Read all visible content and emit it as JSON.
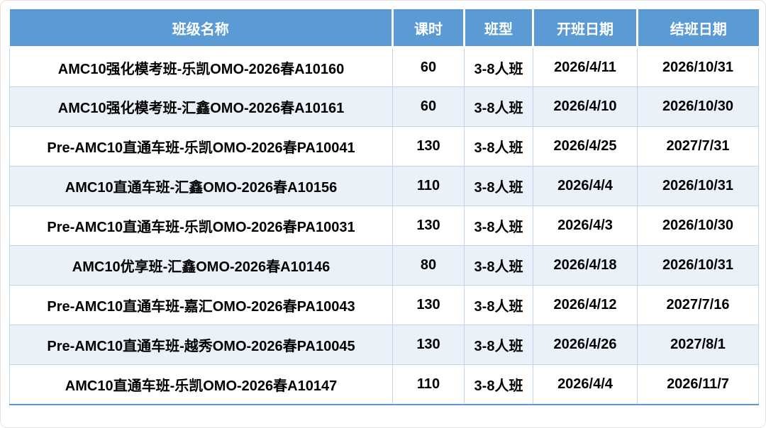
{
  "colors": {
    "header_bg": "#5B9BD5",
    "header_text": "#FFFFFF",
    "alt_row_bg": "#EAF1F9",
    "grid_border": "#BDD7EE",
    "bottom_border": "#5B9BD5",
    "body_text": "#000000"
  },
  "table": {
    "columns": [
      {
        "key": "name",
        "label": "班级名称"
      },
      {
        "key": "hours",
        "label": "课时"
      },
      {
        "key": "type",
        "label": "班型"
      },
      {
        "key": "start",
        "label": "开班日期"
      },
      {
        "key": "end",
        "label": "结班日期"
      }
    ],
    "rows": [
      {
        "name": "AMC10强化模考班-乐凯OMO-2026春A10160",
        "hours": "60",
        "type": "3-8人班",
        "start": "2026/4/11",
        "end": "2026/10/31"
      },
      {
        "name": "AMC10强化模考班-汇鑫OMO-2026春A10161",
        "hours": "60",
        "type": "3-8人班",
        "start": "2026/4/10",
        "end": "2026/10/30"
      },
      {
        "name": "Pre-AMC10直通车班-乐凯OMO-2026春PA10041",
        "hours": "130",
        "type": "3-8人班",
        "start": "2026/4/25",
        "end": "2027/7/31"
      },
      {
        "name": "AMC10直通车班-汇鑫OMO-2026春A10156",
        "hours": "110",
        "type": "3-8人班",
        "start": "2026/4/4",
        "end": "2026/10/31"
      },
      {
        "name": "Pre-AMC10直通车班-乐凯OMO-2026春PA10031",
        "hours": "130",
        "type": "3-8人班",
        "start": "2026/4/3",
        "end": "2026/10/30"
      },
      {
        "name": "AMC10优享班-汇鑫OMO-2026春A10146",
        "hours": "80",
        "type": "3-8人班",
        "start": "2026/4/18",
        "end": "2026/10/31"
      },
      {
        "name": "Pre-AMC10直通车班-嘉汇OMO-2026春PA10043",
        "hours": "130",
        "type": "3-8人班",
        "start": "2026/4/12",
        "end": "2027/7/16"
      },
      {
        "name": "Pre-AMC10直通车班-越秀OMO-2026春PA10045",
        "hours": "130",
        "type": "3-8人班",
        "start": "2026/4/26",
        "end": "2027/8/1"
      },
      {
        "name": "AMC10直通车班-乐凯OMO-2026春A10147",
        "hours": "110",
        "type": "3-8人班",
        "start": "2026/4/4",
        "end": "2026/11/7"
      }
    ]
  },
  "chart_data": {
    "type": "table",
    "headers": [
      "班级名称",
      "课时",
      "班型",
      "开班日期",
      "结班日期"
    ],
    "rows": [
      [
        "AMC10强化模考班-乐凯OMO-2026春A10160",
        "60",
        "3-8人班",
        "2026/4/11",
        "2026/10/31"
      ],
      [
        "AMC10强化模考班-汇鑫OMO-2026春A10161",
        "60",
        "3-8人班",
        "2026/4/10",
        "2026/10/30"
      ],
      [
        "Pre-AMC10直通车班-乐凯OMO-2026春PA10041",
        "130",
        "3-8人班",
        "2026/4/25",
        "2027/7/31"
      ],
      [
        "AMC10直通车班-汇鑫OMO-2026春A10156",
        "110",
        "3-8人班",
        "2026/4/4",
        "2026/10/31"
      ],
      [
        "Pre-AMC10直通车班-乐凯OMO-2026春PA10031",
        "130",
        "3-8人班",
        "2026/4/3",
        "2026/10/30"
      ],
      [
        "AMC10优享班-汇鑫OMO-2026春A10146",
        "80",
        "3-8人班",
        "2026/4/18",
        "2026/10/31"
      ],
      [
        "Pre-AMC10直通车班-嘉汇OMO-2026春PA10043",
        "130",
        "3-8人班",
        "2026/4/12",
        "2027/7/16"
      ],
      [
        "Pre-AMC10直通车班-越秀OMO-2026春PA10045",
        "130",
        "3-8人班",
        "2026/4/26",
        "2027/8/1"
      ],
      [
        "AMC10直通车班-乐凯OMO-2026春A10147",
        "110",
        "3-8人班",
        "2026/4/4",
        "2026/11/7"
      ]
    ]
  }
}
